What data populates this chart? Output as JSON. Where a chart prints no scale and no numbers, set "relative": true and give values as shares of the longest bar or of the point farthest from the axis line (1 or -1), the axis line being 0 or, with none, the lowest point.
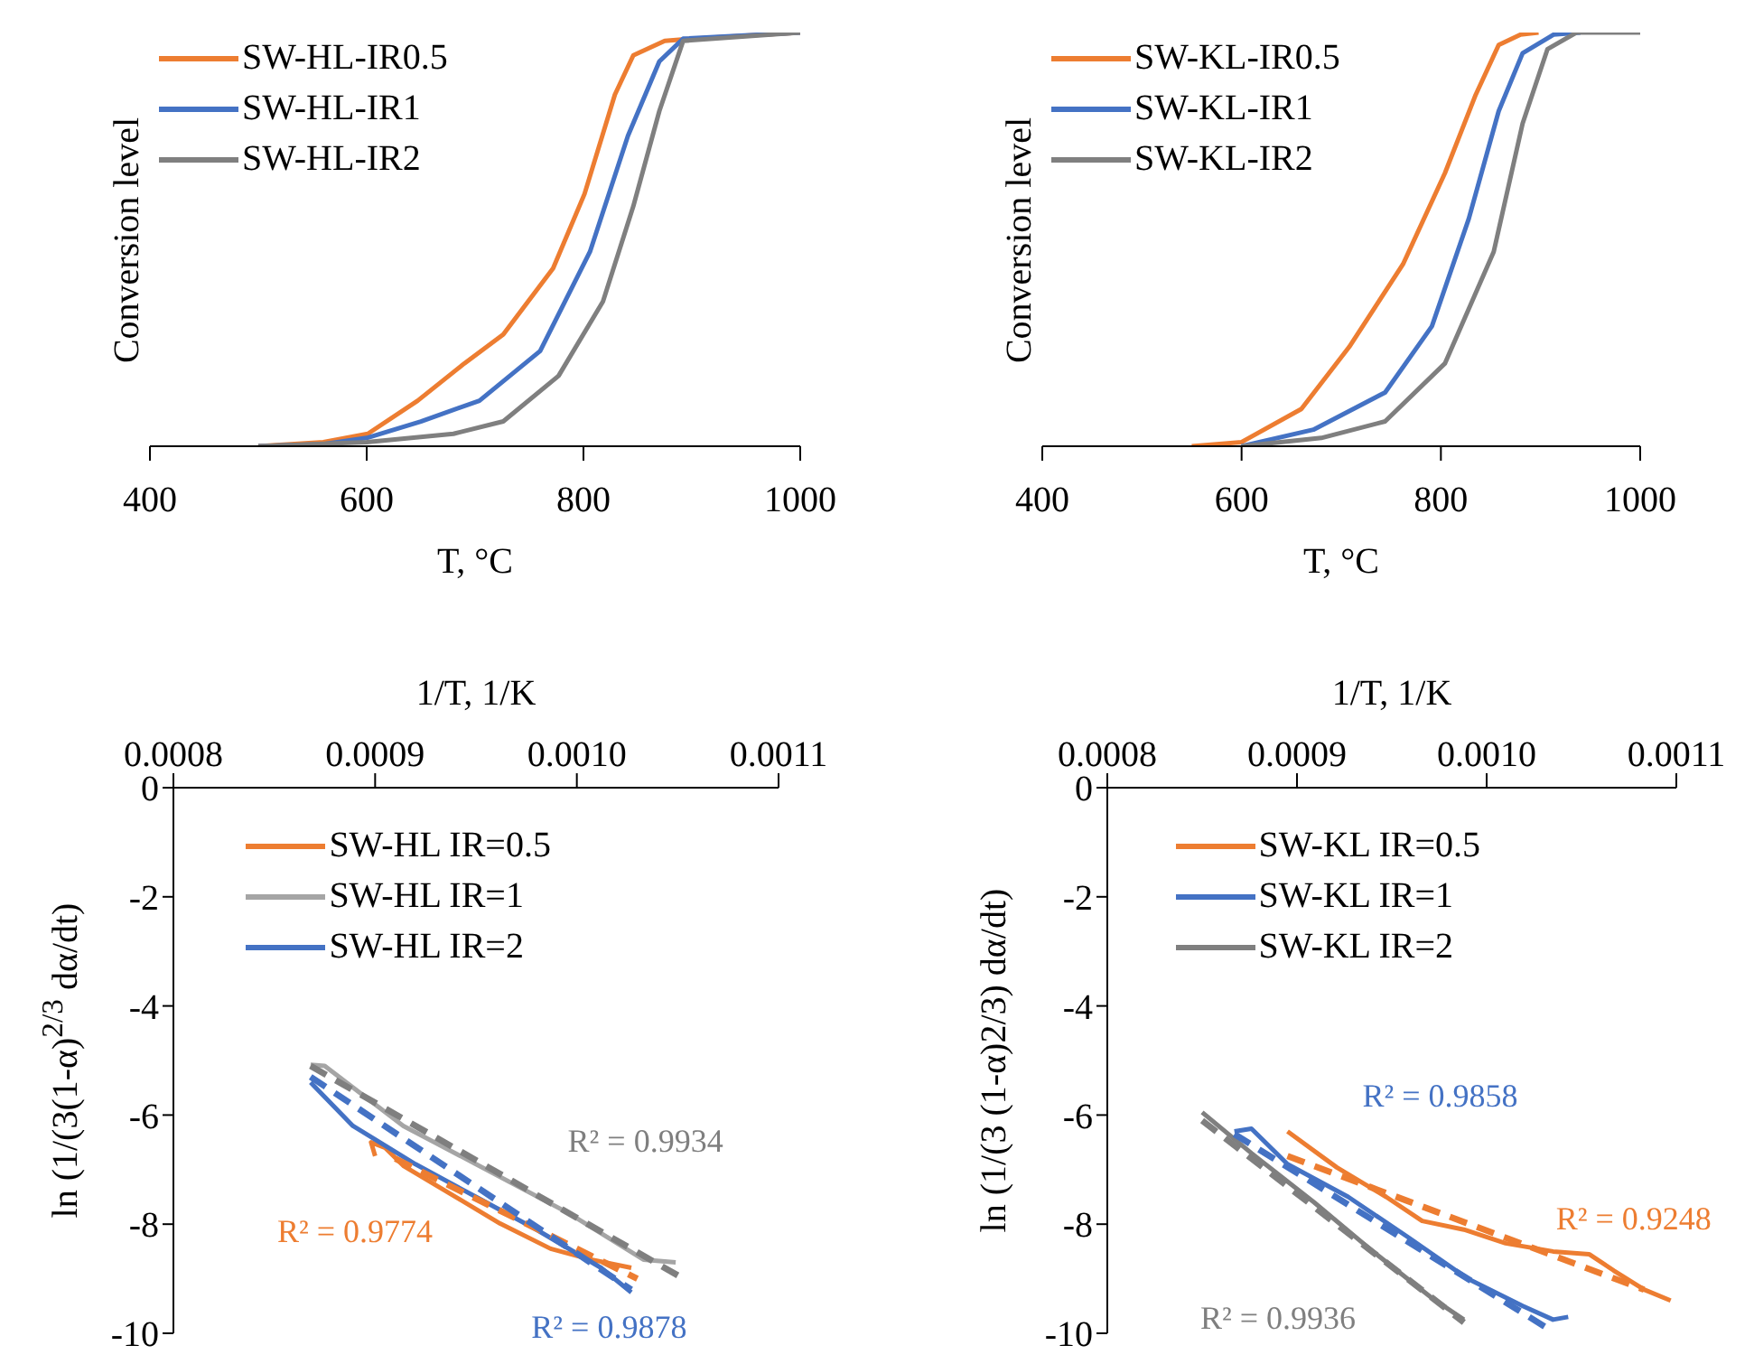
{
  "chart_data": [
    {
      "type": "line",
      "relative": true,
      "xlabel": "T, °C",
      "ylabel": "Conversion level",
      "xlim": [
        400,
        1000
      ],
      "xticks": [
        400,
        600,
        800,
        1000
      ],
      "legend": "top left",
      "line_style": "solid",
      "series": [
        {
          "name": "SW-HL-IR0.5",
          "color": "#ed7d31",
          "x": [
            500,
            560,
            601,
            647,
            690,
            726,
            772,
            801,
            829,
            846,
            875,
            900,
            1000
          ],
          "values": [
            0,
            0.01,
            0.03,
            0.11,
            0.2,
            0.27,
            0.43,
            0.61,
            0.85,
            0.945,
            0.98,
            0.985,
            1
          ]
        },
        {
          "name": "SW-HL-IR1",
          "color": "#4472c4",
          "x": [
            500,
            560,
            600,
            650,
            704,
            760,
            806,
            841,
            870,
            892,
            1000
          ],
          "values": [
            0,
            0.005,
            0.02,
            0.06,
            0.11,
            0.23,
            0.47,
            0.75,
            0.93,
            0.985,
            1
          ]
        },
        {
          "name": "SW-HL-IR2",
          "color": "#7f7f7f",
          "x": [
            500,
            600,
            680,
            726,
            777,
            818,
            846,
            870,
            892,
            1000
          ],
          "values": [
            0,
            0.01,
            0.03,
            0.06,
            0.17,
            0.35,
            0.58,
            0.81,
            0.98,
            1
          ]
        }
      ]
    },
    {
      "type": "line",
      "relative": true,
      "xlabel": "T, °C",
      "ylabel": "Conversion level",
      "xlim": [
        400,
        1000
      ],
      "xticks": [
        400,
        600,
        800,
        1000
      ],
      "legend": "top left",
      "line_style": "solid",
      "series": [
        {
          "name": "SW-KL-IR0.5",
          "color": "#ed7d31",
          "x": [
            550,
            600,
            660,
            708,
            762,
            804,
            835,
            858,
            880,
            898
          ],
          "values": [
            0,
            0.01,
            0.09,
            0.24,
            0.44,
            0.66,
            0.85,
            0.97,
            0.995,
            1
          ]
        },
        {
          "name": "SW-KL-IR1",
          "color": "#4472c4",
          "x": [
            600,
            672,
            744,
            791,
            828,
            858,
            882,
            913,
            940
          ],
          "values": [
            0,
            0.04,
            0.13,
            0.29,
            0.55,
            0.81,
            0.95,
            0.995,
            1
          ]
        },
        {
          "name": "SW-KL-IR2",
          "color": "#7f7f7f",
          "x": [
            600,
            680,
            744,
            804,
            853,
            882,
            907,
            936,
            1000
          ],
          "values": [
            0,
            0.02,
            0.06,
            0.2,
            0.47,
            0.78,
            0.96,
            1,
            1
          ]
        }
      ]
    },
    {
      "type": "line",
      "xlabel": "1/T,  1/K",
      "ylabel": "ln (1/(3(1-α)$^{2/3}$ dα/dt)",
      "xlim": [
        0.0008,
        0.0011
      ],
      "xticks": [
        0.0008,
        0.0009,
        {
          "value": 0.001,
          "label": "0.0010"
        },
        0.0011
      ],
      "ylim": [
        -10,
        0
      ],
      "yticks": [
        0,
        -2,
        -4,
        -6,
        -8,
        -10
      ],
      "legend": "top",
      "line_style": "solid",
      "series": [
        {
          "name": "SW-HL IR=0.5",
          "color": "#ed7d31",
          "x": [
            0.0009,
            0.000898,
            0.000905,
            0.000914,
            0.000939,
            0.000962,
            0.000987,
            0.001006,
            0.001027
          ],
          "values": [
            -6.75,
            -6.5,
            -6.6,
            -6.93,
            -7.48,
            -7.99,
            -8.45,
            -8.64,
            -8.8
          ]
        },
        {
          "name": "SW-HL IR=1",
          "color": "#a5a5a5",
          "x": [
            0.000868,
            0.000875,
            0.000914,
            0.00095,
            0.000996,
            0.001033,
            0.001049
          ],
          "values": [
            -5.08,
            -5.1,
            -6.2,
            -6.9,
            -7.8,
            -8.65,
            -8.7
          ]
        },
        {
          "name": "SW-HL IR=2",
          "color": "#4472c4",
          "x": [
            0.000868,
            0.000889,
            0.00092,
            0.00095,
            0.00098,
            0.001012,
            0.001027
          ],
          "values": [
            -5.4,
            -6.2,
            -6.9,
            -7.5,
            -8.1,
            -8.8,
            -9.25
          ]
        },
        {
          "type": "line",
          "line_style": "dashed",
          "color": "#ed7d31",
          "x": [
            0.00091,
            0.00103
          ],
          "values": [
            -6.8,
            -9
          ]
        },
        {
          "type": "line",
          "line_style": "dashed",
          "color": "#7f7f7f",
          "x": [
            0.000868,
            0.001053
          ],
          "values": [
            -5.1,
            -9
          ]
        },
        {
          "type": "line",
          "line_style": "dashed",
          "color": "#4472c4",
          "x": [
            0.000868,
            0.001027
          ],
          "values": [
            -5.3,
            -9.2
          ]
        }
      ],
      "annotations": [
        "R² = 0.9774",
        "R² = 0.9934",
        "R² = 0.9878"
      ]
    },
    {
      "type": "line",
      "xlabel": "1/T,  1/K",
      "ylabel": "ln (1/(3 (1-α)2/3) dα/dt)",
      "xlim": [
        0.0008,
        0.0011
      ],
      "xticks": [
        0.0008,
        0.0009,
        {
          "value": 0.001,
          "label": "0.0010"
        },
        0.0011
      ],
      "ylim": [
        -10,
        0
      ],
      "yticks": [
        0,
        -2,
        -4,
        -6,
        -8,
        -10
      ],
      "legend": "top",
      "line_style": "solid",
      "series": [
        {
          "name": "SW-KL IR=0.5",
          "color": "#ed7d31",
          "x": [
            0.000895,
            0.000921,
            0.000947,
            0.000966,
            0.000988,
            0.00101,
            0.001035,
            0.001054,
            0.001067,
            0.001083,
            0.001097
          ],
          "values": [
            -6.3,
            -6.96,
            -7.5,
            -7.94,
            -8.1,
            -8.35,
            -8.5,
            -8.55,
            -8.85,
            -9.2,
            -9.4
          ]
        },
        {
          "name": "SW-KL IR=1",
          "color": "#4472c4",
          "x": [
            0.000867,
            0.000876,
            0.000895,
            0.000927,
            0.000959,
            0.00099,
            0.001019,
            0.001035,
            0.001043
          ],
          "values": [
            -6.3,
            -6.25,
            -6.9,
            -7.5,
            -8.25,
            -9,
            -9.5,
            -9.75,
            -9.7
          ]
        },
        {
          "name": "SW-KL IR=2",
          "color": "#7f7f7f",
          "x": [
            0.00085,
            0.000876,
            0.000909,
            0.00094,
            0.000971,
            0.000988
          ],
          "values": [
            -5.95,
            -6.7,
            -7.6,
            -8.5,
            -9.35,
            -9.75
          ]
        },
        {
          "type": "line",
          "line_style": "dashed",
          "color": "#ed7d31",
          "x": [
            0.000895,
            0.001083
          ],
          "values": [
            -6.75,
            -9.2
          ]
        },
        {
          "type": "line",
          "line_style": "dashed",
          "color": "#4472c4",
          "x": [
            0.000867,
            0.001034
          ],
          "values": [
            -6.35,
            -9.95
          ]
        },
        {
          "type": "line",
          "line_style": "dashed",
          "color": "#7f7f7f",
          "x": [
            0.00085,
            0.000988
          ],
          "values": [
            -6.1,
            -9.8
          ]
        }
      ],
      "annotations": [
        "R² = 0.9248",
        "R² = 0.9858",
        "R² = 0.9936"
      ]
    }
  ]
}
